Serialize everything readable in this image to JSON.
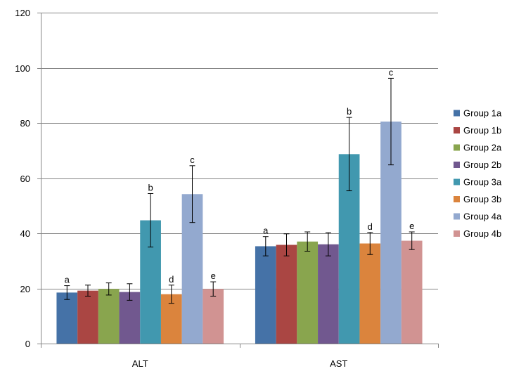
{
  "chart_data": {
    "type": "bar",
    "title": "",
    "xlabel": "",
    "ylabel": "",
    "ylim": [
      0,
      120
    ],
    "yticks": [
      0,
      20,
      40,
      60,
      80,
      100,
      120
    ],
    "grid": true,
    "legend_position": "right",
    "categories": [
      "ALT",
      "AST"
    ],
    "series": [
      {
        "name": "Group 1a",
        "color": "#4572A7",
        "values": [
          18.5,
          35.3
        ],
        "errors": [
          2.5,
          3.5
        ],
        "labels": [
          "a",
          "a"
        ]
      },
      {
        "name": "Group 1b",
        "color": "#AA4643",
        "values": [
          19.2,
          35.8
        ],
        "errors": [
          2.0,
          4.0
        ],
        "labels": [
          "",
          ""
        ]
      },
      {
        "name": "Group 2a",
        "color": "#89A54E",
        "values": [
          19.8,
          37.0
        ],
        "errors": [
          2.2,
          3.5
        ],
        "labels": [
          "",
          ""
        ]
      },
      {
        "name": "Group 2b",
        "color": "#71588F",
        "values": [
          18.7,
          36.0
        ],
        "errors": [
          3.0,
          4.2
        ],
        "labels": [
          "",
          ""
        ]
      },
      {
        "name": "Group 3a",
        "color": "#4198AF",
        "values": [
          44.7,
          68.7
        ],
        "errors": [
          9.7,
          13.3
        ],
        "labels": [
          "b",
          "b"
        ]
      },
      {
        "name": "Group 3b",
        "color": "#DB843D",
        "values": [
          17.9,
          36.3
        ],
        "errors": [
          3.3,
          4.0
        ],
        "labels": [
          "d",
          "d"
        ]
      },
      {
        "name": "Group 4a",
        "color": "#93A9CF",
        "values": [
          54.2,
          80.5
        ],
        "errors": [
          10.3,
          15.7
        ],
        "labels": [
          "c",
          "c"
        ]
      },
      {
        "name": "Group 4b",
        "color": "#D19392",
        "values": [
          19.8,
          37.3
        ],
        "errors": [
          2.6,
          3.2
        ],
        "labels": [
          "e",
          "e"
        ]
      }
    ]
  }
}
